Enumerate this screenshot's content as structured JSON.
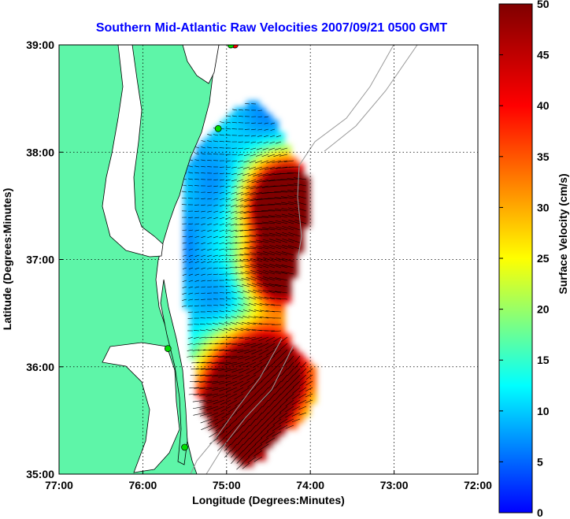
{
  "title": "Southern Mid-Atlantic Raw Velocities 2007/09/21 0500 GMT",
  "map": {
    "xlabel": "Longitude (Degrees:Minutes)",
    "ylabel": "Latitude (Degrees:Minutes)",
    "lon_range": [
      -77,
      -72
    ],
    "lat_range": [
      35,
      39
    ],
    "lon_ticks": [
      {
        "value": -77,
        "label": "77:00"
      },
      {
        "value": -76,
        "label": "76:00"
      },
      {
        "value": -75,
        "label": "75:00"
      },
      {
        "value": -74,
        "label": "74:00"
      },
      {
        "value": -73,
        "label": "73:00"
      },
      {
        "value": -72,
        "label": "72:00"
      }
    ],
    "lat_ticks": [
      {
        "value": 39,
        "label": "39:00"
      },
      {
        "value": 38,
        "label": "38:00"
      },
      {
        "value": 37,
        "label": "37:00"
      },
      {
        "value": 36,
        "label": "36:00"
      },
      {
        "value": 35,
        "label": "35:00"
      }
    ],
    "grid": "dotted",
    "land_color": "#5ef5a8",
    "vector_color": "#000000"
  },
  "colorbar": {
    "label": "Surface Velocity (cm/s)",
    "range": [
      0,
      50
    ],
    "ticks": [
      {
        "value": 0,
        "label": "0"
      },
      {
        "value": 5,
        "label": "5"
      },
      {
        "value": 10,
        "label": "10"
      },
      {
        "value": 15,
        "label": "15"
      },
      {
        "value": 20,
        "label": "20"
      },
      {
        "value": 25,
        "label": "25"
      },
      {
        "value": 30,
        "label": "30"
      },
      {
        "value": 35,
        "label": "35"
      },
      {
        "value": 40,
        "label": "40"
      },
      {
        "value": 45,
        "label": "45"
      },
      {
        "value": 50,
        "label": "50"
      }
    ],
    "colormap": [
      "#0000ff",
      "#00ffff",
      "#ffff00",
      "#ff0000",
      "#800000"
    ]
  },
  "stations": [
    {
      "lon": -74.9,
      "lat": 39.0,
      "color": "#ff0000"
    },
    {
      "lon": -74.95,
      "lat": 39.0,
      "color": "#00dd00"
    },
    {
      "lon": -75.1,
      "lat": 38.22,
      "color": "#00dd00"
    },
    {
      "lon": -75.7,
      "lat": 36.17,
      "color": "#00dd00"
    },
    {
      "lon": -75.5,
      "lat": 35.25,
      "color": "#00dd00"
    }
  ]
}
